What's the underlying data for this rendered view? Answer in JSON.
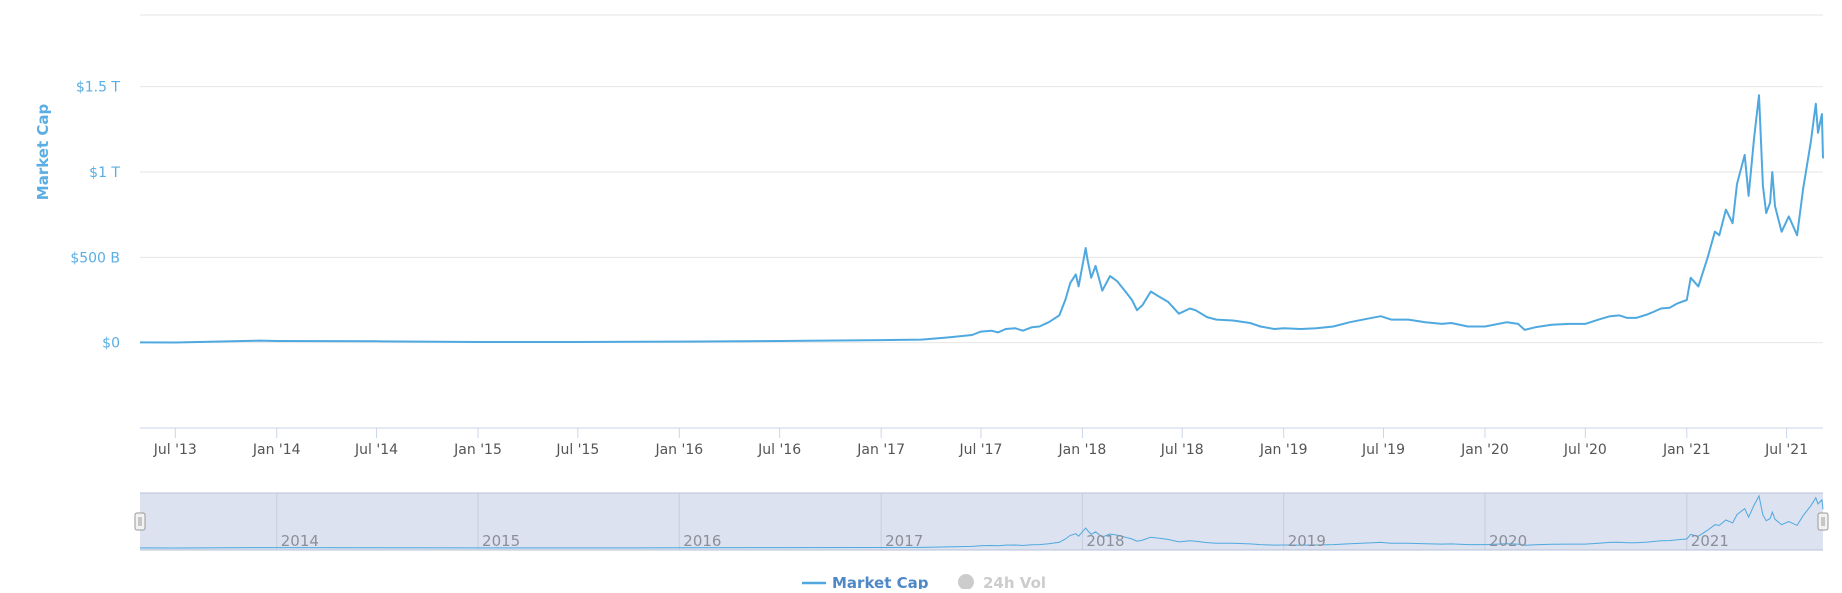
{
  "chart_data": {
    "type": "line",
    "title": "",
    "xlabel": "",
    "ylabel": "Market Cap",
    "y_unit_note": "USD",
    "ylim": [
      -500,
      1920
    ],
    "y_ticks": [
      {
        "value": 0,
        "label": "$0"
      },
      {
        "value": 500,
        "label": "$500 B"
      },
      {
        "value": 1000,
        "label": "$1 T"
      },
      {
        "value": 1500,
        "label": "$1.5 T"
      }
    ],
    "x_range": [
      "2013-04-28",
      "2021-09-05"
    ],
    "x_ticks": [
      {
        "date": "2013-07-01",
        "label": "Jul '13"
      },
      {
        "date": "2014-01-01",
        "label": "Jan '14"
      },
      {
        "date": "2014-07-01",
        "label": "Jul '14"
      },
      {
        "date": "2015-01-01",
        "label": "Jan '15"
      },
      {
        "date": "2015-07-01",
        "label": "Jul '15"
      },
      {
        "date": "2016-01-01",
        "label": "Jan '16"
      },
      {
        "date": "2016-07-01",
        "label": "Jul '16"
      },
      {
        "date": "2017-01-01",
        "label": "Jan '17"
      },
      {
        "date": "2017-07-01",
        "label": "Jul '17"
      },
      {
        "date": "2018-01-01",
        "label": "Jan '18"
      },
      {
        "date": "2018-07-01",
        "label": "Jul '18"
      },
      {
        "date": "2019-01-01",
        "label": "Jan '19"
      },
      {
        "date": "2019-07-01",
        "label": "Jul '19"
      },
      {
        "date": "2020-01-01",
        "label": "Jan '20"
      },
      {
        "date": "2020-07-01",
        "label": "Jul '20"
      },
      {
        "date": "2021-01-01",
        "label": "Jan '21"
      },
      {
        "date": "2021-07-01",
        "label": "Jul '21"
      }
    ],
    "navigator_ticks": [
      {
        "date": "2014-01-01",
        "label": "2014"
      },
      {
        "date": "2015-01-01",
        "label": "2015"
      },
      {
        "date": "2016-01-01",
        "label": "2016"
      },
      {
        "date": "2017-01-01",
        "label": "2017"
      },
      {
        "date": "2018-01-01",
        "label": "2018"
      },
      {
        "date": "2019-01-01",
        "label": "2019"
      },
      {
        "date": "2020-01-01",
        "label": "2020"
      },
      {
        "date": "2021-01-01",
        "label": "2021"
      }
    ],
    "grid": true,
    "legend_position": "bottom-center",
    "series": [
      {
        "name": "Market Cap",
        "color": "#4fa9e0",
        "visible": true,
        "points": [
          [
            "2013-04-28",
            1.5
          ],
          [
            "2013-07-01",
            1.2
          ],
          [
            "2013-12-01",
            12
          ],
          [
            "2014-01-01",
            10
          ],
          [
            "2014-07-01",
            8
          ],
          [
            "2015-01-01",
            4
          ],
          [
            "2015-07-01",
            4
          ],
          [
            "2016-01-01",
            6
          ],
          [
            "2016-07-01",
            10
          ],
          [
            "2017-01-01",
            15
          ],
          [
            "2017-03-15",
            18
          ],
          [
            "2017-05-01",
            30
          ],
          [
            "2017-06-15",
            45
          ],
          [
            "2017-07-01",
            65
          ],
          [
            "2017-07-20",
            70
          ],
          [
            "2017-08-01",
            60
          ],
          [
            "2017-08-15",
            80
          ],
          [
            "2017-09-01",
            85
          ],
          [
            "2017-09-15",
            70
          ],
          [
            "2017-10-01",
            90
          ],
          [
            "2017-10-15",
            95
          ],
          [
            "2017-11-01",
            120
          ],
          [
            "2017-11-20",
            160
          ],
          [
            "2017-12-01",
            250
          ],
          [
            "2017-12-10",
            350
          ],
          [
            "2017-12-20",
            400
          ],
          [
            "2017-12-25",
            330
          ],
          [
            "2018-01-07",
            555
          ],
          [
            "2018-01-10",
            490
          ],
          [
            "2018-01-17",
            380
          ],
          [
            "2018-01-25",
            450
          ],
          [
            "2018-02-06",
            305
          ],
          [
            "2018-02-20",
            390
          ],
          [
            "2018-03-05",
            360
          ],
          [
            "2018-03-20",
            300
          ],
          [
            "2018-04-01",
            250
          ],
          [
            "2018-04-10",
            190
          ],
          [
            "2018-04-20",
            220
          ],
          [
            "2018-05-05",
            300
          ],
          [
            "2018-05-20",
            270
          ],
          [
            "2018-06-05",
            240
          ],
          [
            "2018-06-25",
            170
          ],
          [
            "2018-07-15",
            200
          ],
          [
            "2018-07-25",
            190
          ],
          [
            "2018-08-15",
            150
          ],
          [
            "2018-09-01",
            135
          ],
          [
            "2018-10-01",
            130
          ],
          [
            "2018-11-01",
            115
          ],
          [
            "2018-11-20",
            95
          ],
          [
            "2018-12-15",
            80
          ],
          [
            "2019-01-01",
            85
          ],
          [
            "2019-02-01",
            80
          ],
          [
            "2019-03-01",
            85
          ],
          [
            "2019-04-01",
            95
          ],
          [
            "2019-05-01",
            120
          ],
          [
            "2019-06-01",
            140
          ],
          [
            "2019-06-26",
            155
          ],
          [
            "2019-07-15",
            135
          ],
          [
            "2019-08-15",
            135
          ],
          [
            "2019-09-15",
            120
          ],
          [
            "2019-10-15",
            110
          ],
          [
            "2019-11-01",
            115
          ],
          [
            "2019-12-01",
            95
          ],
          [
            "2020-01-01",
            95
          ],
          [
            "2020-02-10",
            120
          ],
          [
            "2020-03-01",
            110
          ],
          [
            "2020-03-13",
            75
          ],
          [
            "2020-04-01",
            90
          ],
          [
            "2020-05-01",
            105
          ],
          [
            "2020-06-01",
            110
          ],
          [
            "2020-07-01",
            110
          ],
          [
            "2020-07-25",
            135
          ],
          [
            "2020-08-15",
            155
          ],
          [
            "2020-09-01",
            160
          ],
          [
            "2020-09-15",
            145
          ],
          [
            "2020-10-01",
            145
          ],
          [
            "2020-10-21",
            165
          ],
          [
            "2020-11-01",
            180
          ],
          [
            "2020-11-15",
            200
          ],
          [
            "2020-12-01",
            205
          ],
          [
            "2020-12-15",
            230
          ],
          [
            "2021-01-01",
            250
          ],
          [
            "2021-01-08",
            380
          ],
          [
            "2021-01-22",
            330
          ],
          [
            "2021-02-08",
            500
          ],
          [
            "2021-02-21",
            650
          ],
          [
            "2021-03-01",
            630
          ],
          [
            "2021-03-13",
            780
          ],
          [
            "2021-03-25",
            700
          ],
          [
            "2021-04-02",
            930
          ],
          [
            "2021-04-16",
            1100
          ],
          [
            "2021-04-23",
            860
          ],
          [
            "2021-05-03",
            1200
          ],
          [
            "2021-05-12",
            1450
          ],
          [
            "2021-05-19",
            920
          ],
          [
            "2021-05-25",
            760
          ],
          [
            "2021-06-01",
            820
          ],
          [
            "2021-06-05",
            1000
          ],
          [
            "2021-06-10",
            800
          ],
          [
            "2021-06-22",
            650
          ],
          [
            "2021-07-05",
            740
          ],
          [
            "2021-07-20",
            630
          ],
          [
            "2021-07-31",
            900
          ],
          [
            "2021-08-14",
            1180
          ],
          [
            "2021-08-23",
            1400
          ],
          [
            "2021-08-27",
            1230
          ],
          [
            "2021-09-03",
            1340
          ],
          [
            "2021-09-05",
            1080
          ]
        ]
      },
      {
        "name": "24h Vol",
        "color": "#cccccc",
        "visible": false,
        "points": []
      }
    ]
  }
}
